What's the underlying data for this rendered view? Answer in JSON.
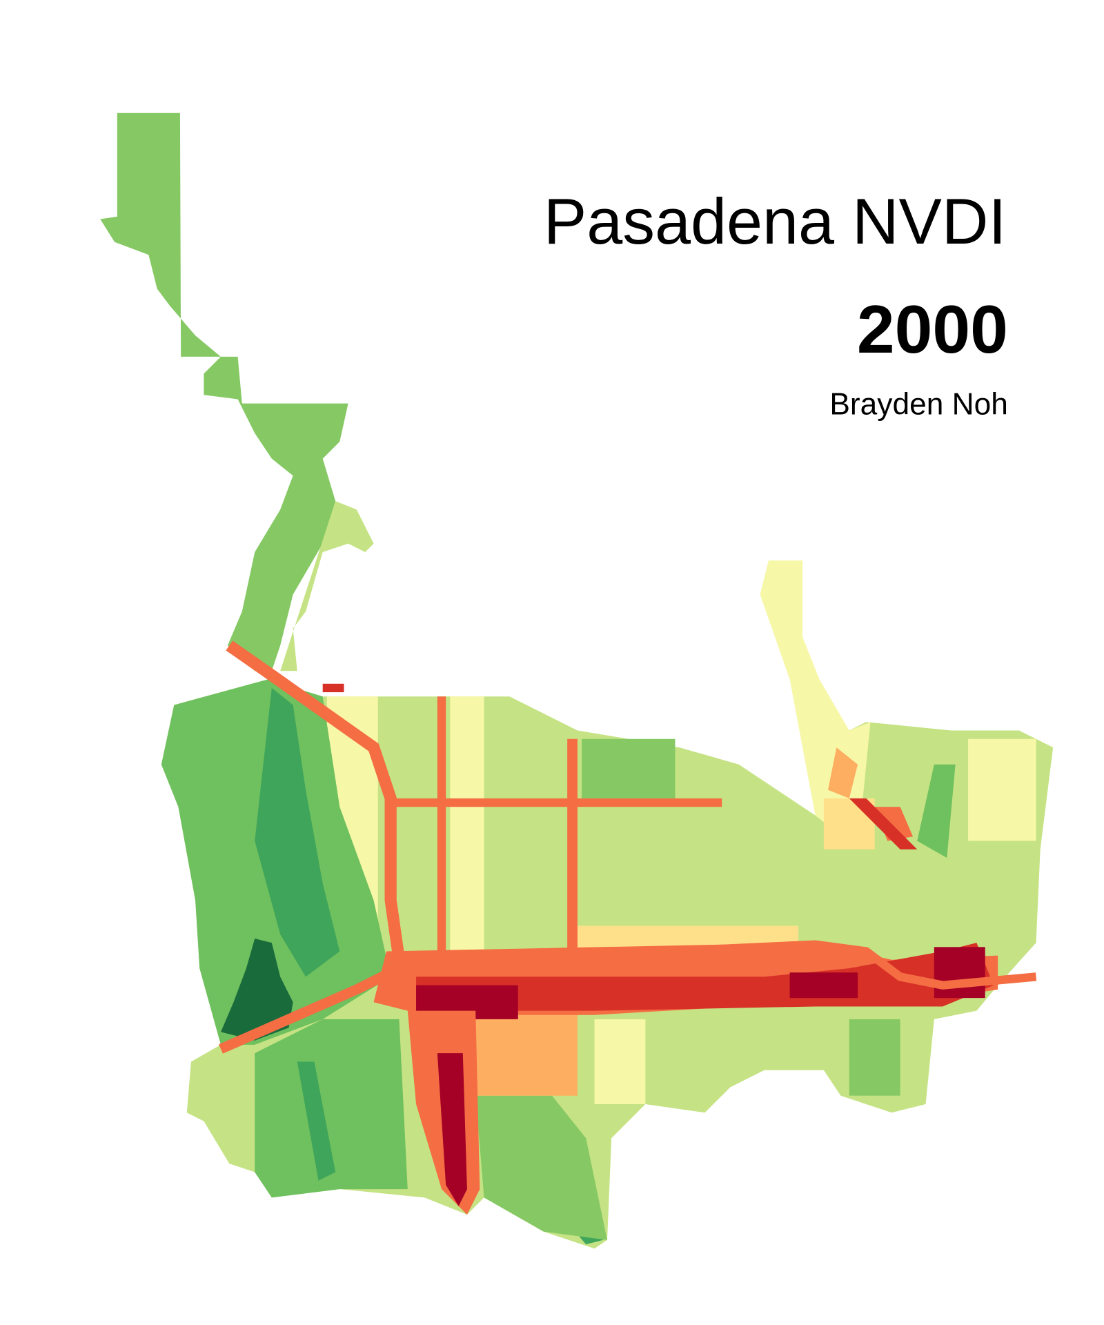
{
  "title": "Pasadena NVDI",
  "year": "2000",
  "author": "Brayden Noh"
}
